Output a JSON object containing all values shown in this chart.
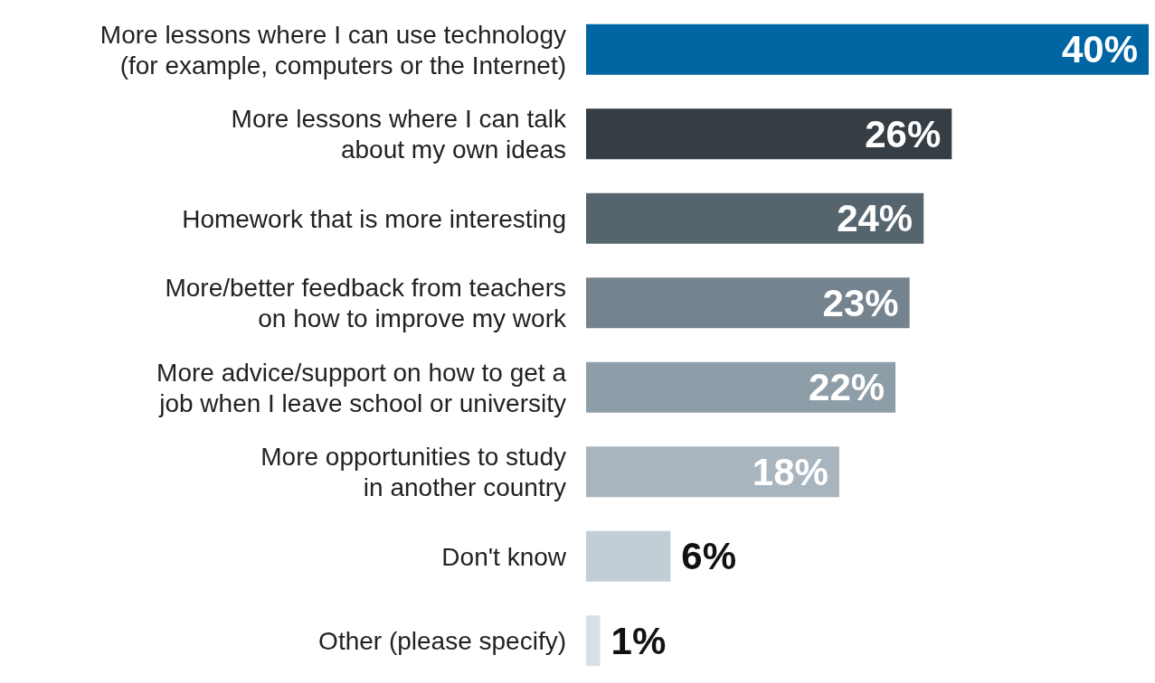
{
  "chart_data": {
    "type": "bar",
    "orientation": "horizontal",
    "categories": [
      "More lessons where I can use technology\n(for example, computers or the Internet)",
      "More lessons where I can talk\nabout my own ideas",
      "Homework that is more interesting",
      "More/better feedback from teachers\non how to improve my work",
      "More advice/support on how to get a\njob when I leave school or university",
      "More opportunities to study\nin another country",
      "Don't know",
      "Other (please specify)"
    ],
    "values": [
      40,
      26,
      24,
      23,
      22,
      18,
      6,
      1
    ],
    "colors": [
      "#0065a3",
      "#353d45",
      "#56646e",
      "#74838d",
      "#8e9ea8",
      "#a8b5be",
      "#c2ced6",
      "#d6e0e7"
    ],
    "value_labels": [
      "40%",
      "26%",
      "24%",
      "23%",
      "22%",
      "18%",
      "6%",
      "1%"
    ]
  }
}
